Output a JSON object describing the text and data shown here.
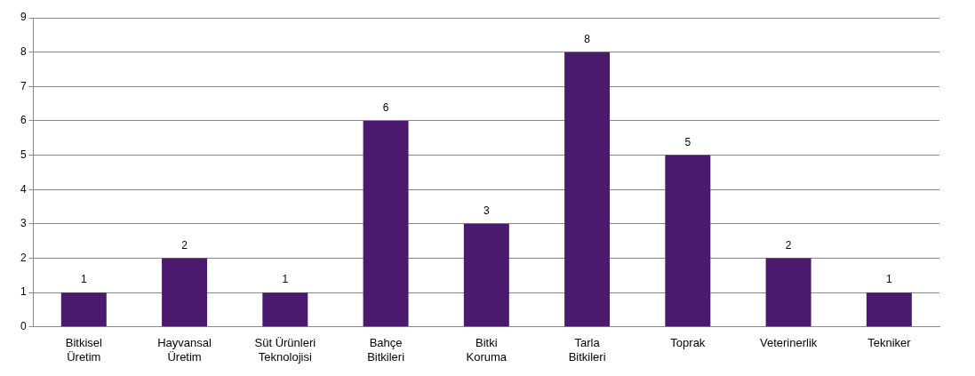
{
  "chart_data": {
    "type": "bar",
    "categories": [
      "Bitkisel Üretim",
      "Hayvansal Üretim",
      "Süt Ürünleri Teknolojisi",
      "Bahçe Bitkileri",
      "Bitki Koruma",
      "Tarla Bitkileri",
      "Toprak",
      "Veterinerlik",
      "Tekniker"
    ],
    "values": [
      1,
      2,
      1,
      6,
      3,
      8,
      5,
      2,
      1
    ],
    "color": "#4b1a6e",
    "ylim": [
      0,
      9
    ],
    "yticks": [
      0,
      1,
      2,
      3,
      4,
      5,
      6,
      7,
      8,
      9
    ],
    "grid": "y",
    "legend": false,
    "data_labels": true
  }
}
